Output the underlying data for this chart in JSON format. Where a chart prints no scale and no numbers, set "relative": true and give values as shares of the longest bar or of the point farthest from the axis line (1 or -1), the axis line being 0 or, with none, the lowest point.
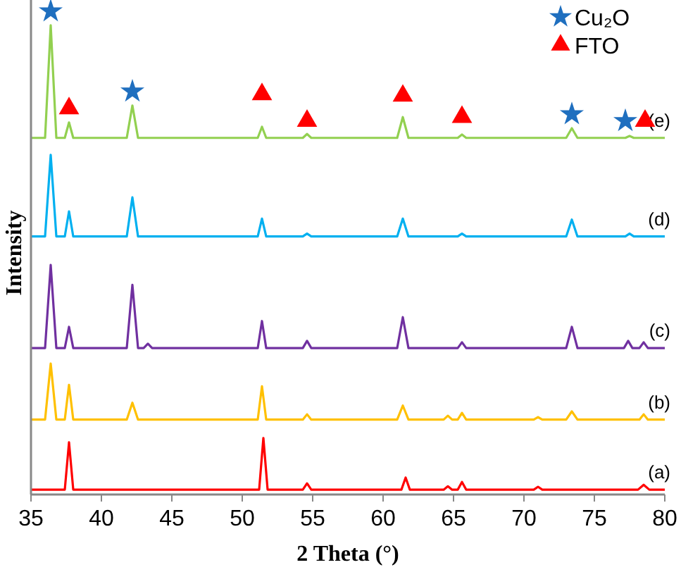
{
  "chart_data": {
    "type": "line",
    "xlabel": "2 Theta (°)",
    "ylabel": "Intensity",
    "relative": true,
    "xlim": [
      35,
      80
    ],
    "xticks": [
      35,
      40,
      45,
      50,
      55,
      60,
      65,
      70,
      75,
      80
    ],
    "legend": "top right",
    "marker": "none",
    "line_style": "solid",
    "series": [
      {
        "name": "(a)",
        "color": "#ff0000",
        "x": [
          35,
          37.4,
          37.7,
          38.0,
          51.2,
          51.5,
          51.8,
          54.3,
          54.6,
          54.9,
          61.3,
          61.6,
          61.9,
          64.3,
          64.6,
          64.9,
          65.3,
          65.6,
          65.9,
          70.7,
          71.0,
          71.3,
          78.1,
          78.5,
          78.9,
          80
        ],
        "values": [
          0.01,
          0.01,
          0.108,
          0.01,
          0.01,
          0.117,
          0.01,
          0.01,
          0.023,
          0.01,
          0.01,
          0.035,
          0.01,
          0.01,
          0.017,
          0.01,
          0.01,
          0.026,
          0.01,
          0.01,
          0.016,
          0.01,
          0.01,
          0.02,
          0.01,
          0.01
        ]
      },
      {
        "name": "(b)",
        "color": "#ffc000",
        "x": [
          35,
          36.0,
          36.4,
          36.8,
          37.4,
          37.7,
          38.0,
          41.8,
          42.2,
          42.6,
          51.1,
          51.4,
          51.7,
          54.3,
          54.6,
          54.9,
          61.0,
          61.4,
          61.8,
          64.3,
          64.6,
          64.9,
          65.3,
          65.6,
          65.9,
          70.7,
          71.0,
          71.3,
          73.0,
          73.4,
          73.8,
          78.2,
          78.5,
          78.8,
          80
        ],
        "values": [
          0.155,
          0.155,
          0.271,
          0.155,
          0.155,
          0.227,
          0.155,
          0.155,
          0.19,
          0.155,
          0.155,
          0.224,
          0.155,
          0.155,
          0.166,
          0.155,
          0.155,
          0.184,
          0.155,
          0.155,
          0.163,
          0.155,
          0.155,
          0.169,
          0.155,
          0.155,
          0.16,
          0.155,
          0.155,
          0.172,
          0.155,
          0.155,
          0.166,
          0.155,
          0.155
        ]
      },
      {
        "name": "(c)",
        "color": "#7030a0",
        "x": [
          35,
          36.0,
          36.4,
          36.8,
          37.4,
          37.7,
          38.0,
          41.8,
          42.2,
          42.6,
          43.0,
          43.3,
          43.6,
          51.1,
          51.4,
          51.7,
          54.3,
          54.6,
          54.9,
          61.0,
          61.4,
          61.8,
          65.3,
          65.6,
          65.9,
          73.0,
          73.4,
          73.8,
          77.1,
          77.4,
          77.7,
          78.2,
          78.5,
          78.8,
          80
        ],
        "values": [
          0.303,
          0.303,
          0.475,
          0.303,
          0.303,
          0.347,
          0.303,
          0.303,
          0.434,
          0.303,
          0.303,
          0.312,
          0.303,
          0.303,
          0.359,
          0.303,
          0.303,
          0.318,
          0.303,
          0.303,
          0.367,
          0.303,
          0.303,
          0.315,
          0.303,
          0.303,
          0.347,
          0.303,
          0.303,
          0.318,
          0.303,
          0.303,
          0.315,
          0.303,
          0.303
        ]
      },
      {
        "name": "(d)",
        "color": "#00b0f0",
        "x": [
          35,
          36.0,
          36.4,
          36.8,
          37.4,
          37.7,
          38.0,
          41.8,
          42.2,
          42.6,
          51.1,
          51.4,
          51.7,
          54.3,
          54.6,
          54.9,
          61.0,
          61.4,
          61.8,
          65.3,
          65.6,
          65.9,
          73.0,
          73.4,
          73.8,
          77.2,
          77.5,
          77.8,
          80
        ],
        "values": [
          0.534,
          0.534,
          0.703,
          0.534,
          0.534,
          0.586,
          0.534,
          0.534,
          0.615,
          0.534,
          0.534,
          0.571,
          0.534,
          0.534,
          0.54,
          0.534,
          0.534,
          0.571,
          0.534,
          0.534,
          0.54,
          0.534,
          0.534,
          0.569,
          0.534,
          0.534,
          0.54,
          0.534,
          0.534
        ]
      },
      {
        "name": "(e)",
        "color": "#92d050",
        "x": [
          35,
          36.0,
          36.4,
          36.8,
          37.4,
          37.7,
          38.0,
          41.8,
          42.2,
          42.6,
          51.1,
          51.4,
          51.7,
          54.3,
          54.6,
          54.9,
          61.0,
          61.4,
          61.8,
          65.3,
          65.6,
          65.9,
          73.0,
          73.4,
          73.8,
          77.2,
          77.5,
          77.8,
          80
        ],
        "values": [
          0.738,
          0.738,
          0.971,
          0.738,
          0.738,
          0.77,
          0.738,
          0.738,
          0.805,
          0.738,
          0.738,
          0.761,
          0.738,
          0.738,
          0.746,
          0.738,
          0.738,
          0.781,
          0.738,
          0.738,
          0.745,
          0.738,
          0.738,
          0.758,
          0.738,
          0.738,
          0.742,
          0.738,
          0.738
        ]
      },
      {
        "name": "Cu₂O",
        "type": "scatter",
        "marker": "star",
        "color": "#1f6fbf",
        "x": [
          36.4,
          42.2,
          73.4,
          77.2
        ],
        "values": [
          1.0,
          0.834,
          0.787,
          0.773
        ]
      },
      {
        "name": "FTO",
        "type": "scatter",
        "marker": "triangle",
        "color": "#ff0000",
        "x": [
          37.7,
          51.4,
          54.6,
          61.4,
          65.6,
          78.6
        ],
        "values": [
          0.799,
          0.828,
          0.773,
          0.825,
          0.781,
          0.773
        ]
      }
    ]
  }
}
